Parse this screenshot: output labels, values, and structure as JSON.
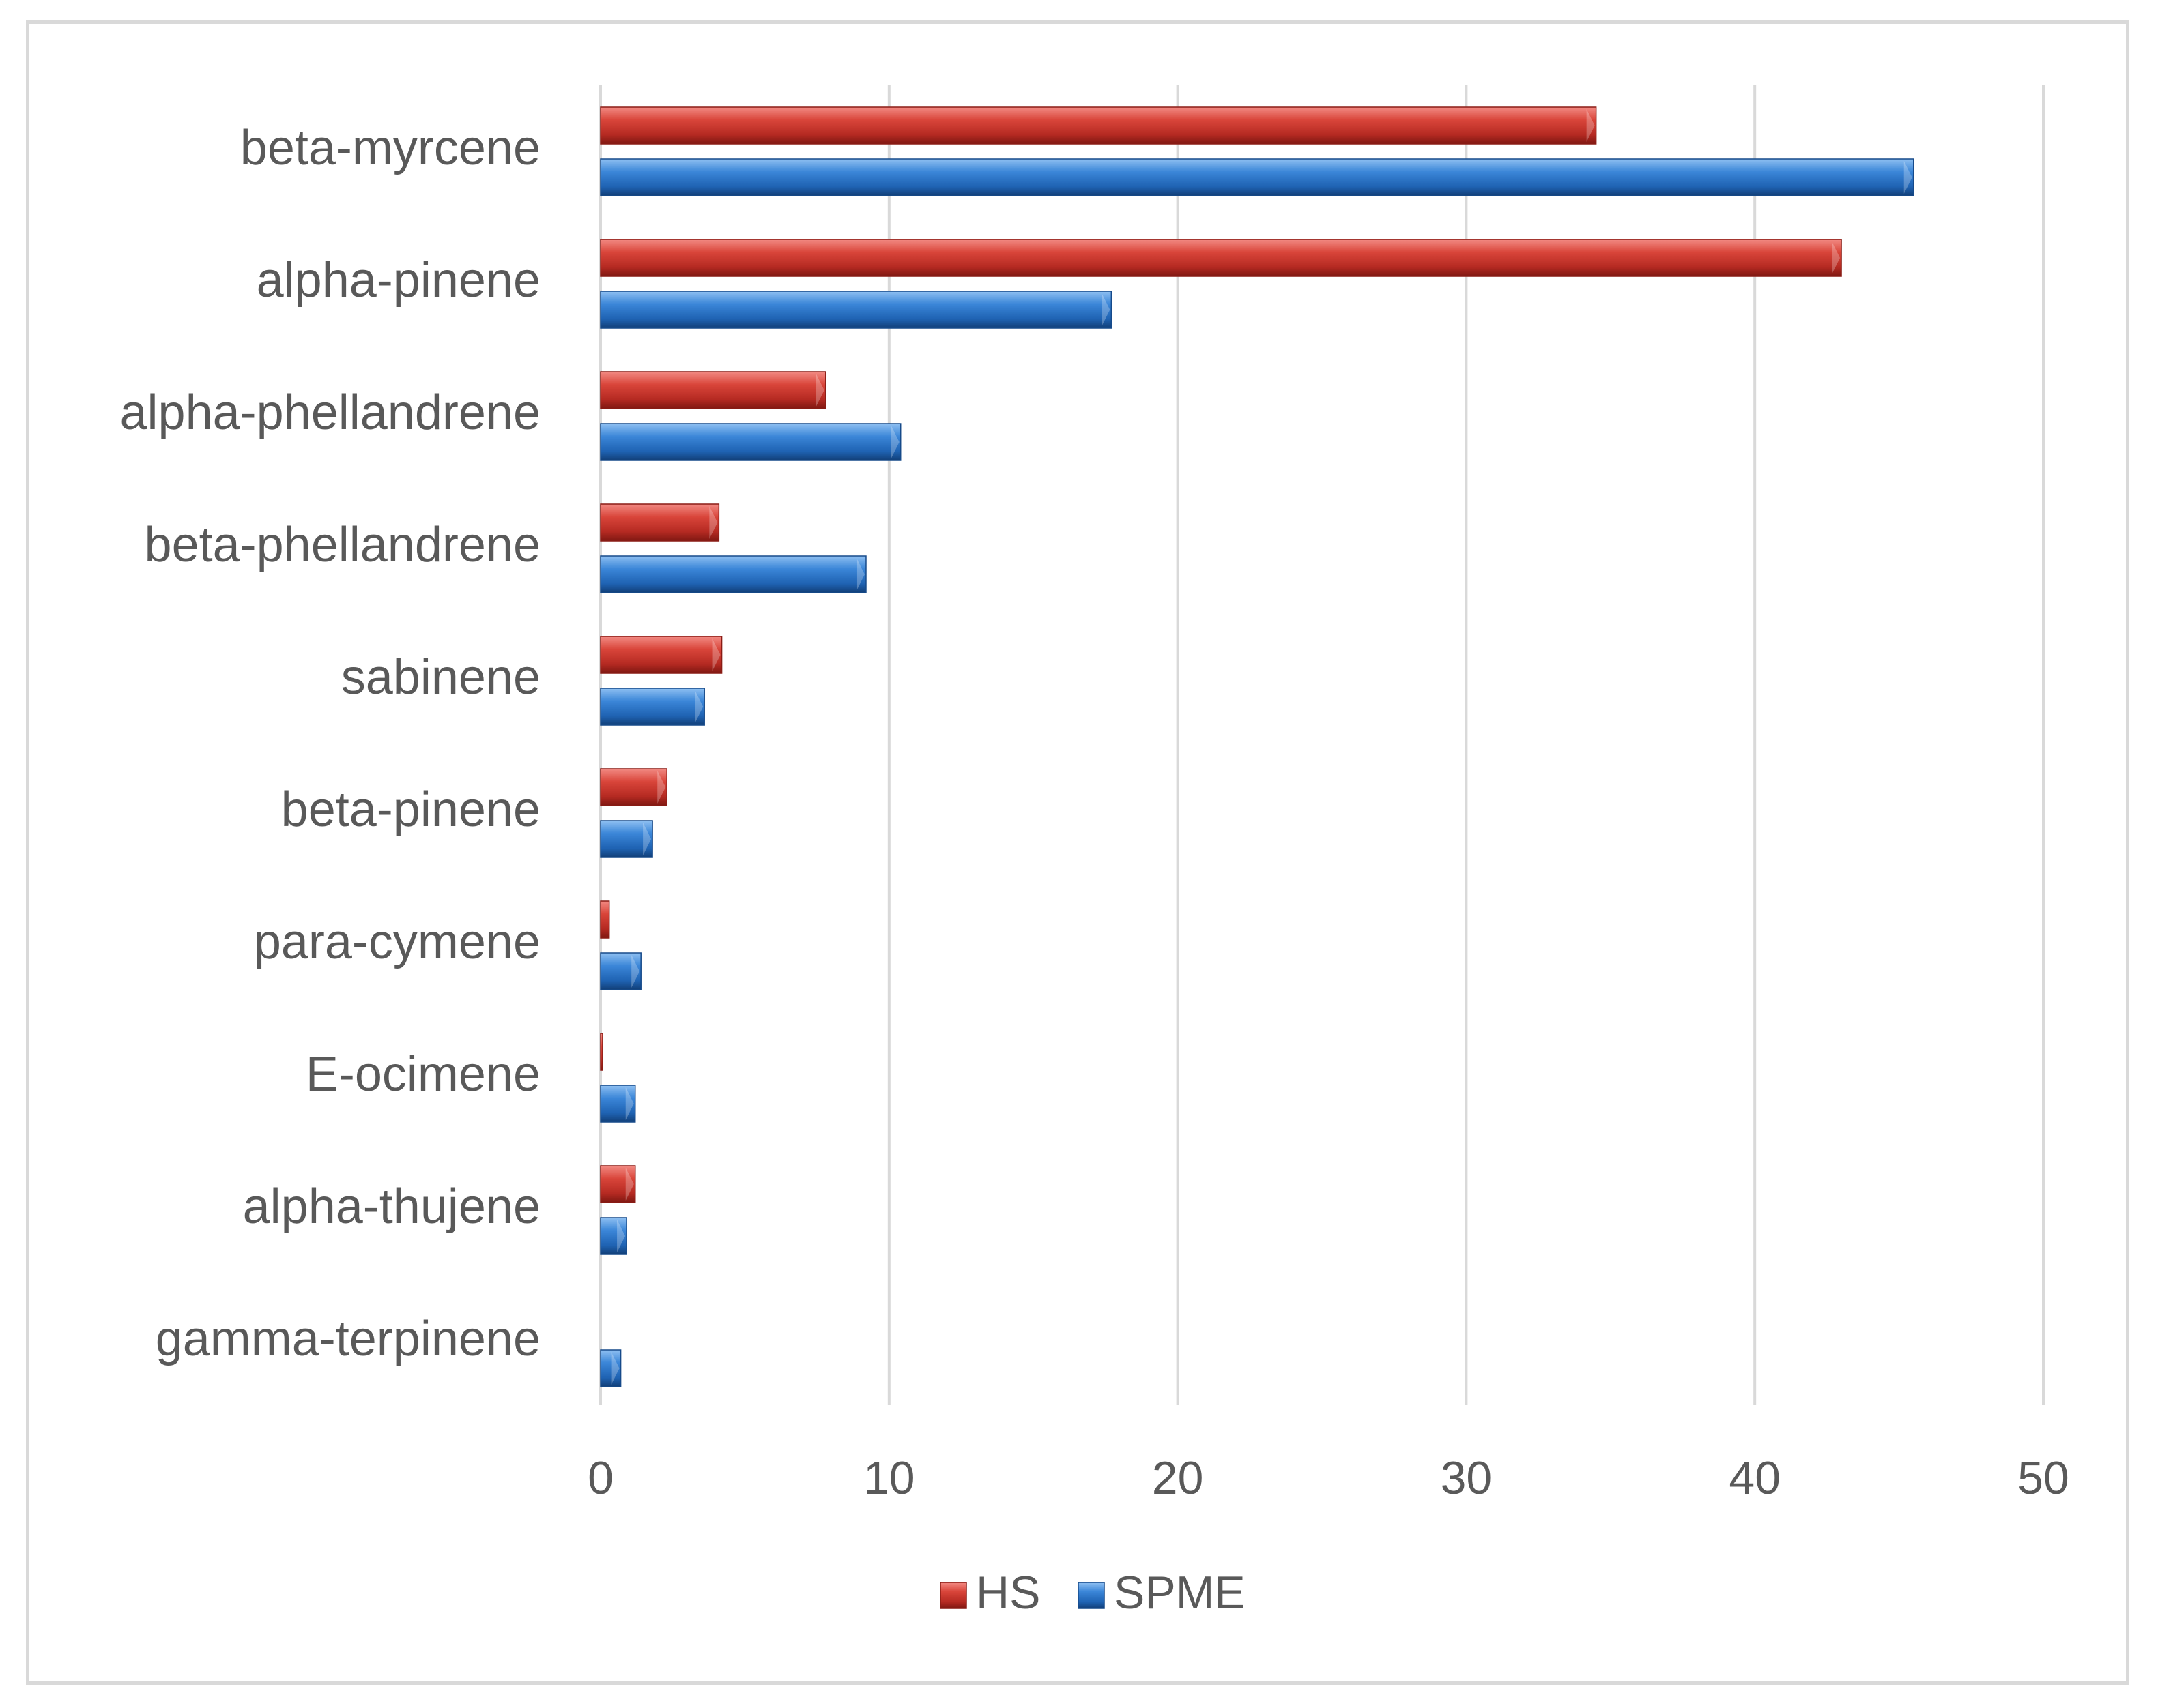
{
  "chart_data": {
    "type": "bar",
    "orientation": "horizontal",
    "categories": [
      "beta-myrcene",
      "alpha-pinene",
      "alpha-phellandrene",
      "beta-phellandrene",
      "sabinene",
      "beta-pinene",
      "para-cymene",
      "E-ocimene",
      "alpha-thujene",
      "gamma-terpinene"
    ],
    "series": [
      {
        "name": "HS",
        "color": "#c0392b",
        "values": [
          34.5,
          43.0,
          7.8,
          4.1,
          4.2,
          2.3,
          0.3,
          0.05,
          1.2,
          0
        ]
      },
      {
        "name": "SPME",
        "color": "#2e75c7",
        "values": [
          45.5,
          17.7,
          10.4,
          9.2,
          3.6,
          1.8,
          1.4,
          1.2,
          0.9,
          0.7
        ]
      }
    ],
    "xlim": [
      0,
      50
    ],
    "xticks": [
      "0",
      "10",
      "20",
      "30",
      "40",
      "50"
    ],
    "grid": "vertical",
    "legend": "bottom",
    "title": "",
    "xlabel": "",
    "ylabel": ""
  }
}
